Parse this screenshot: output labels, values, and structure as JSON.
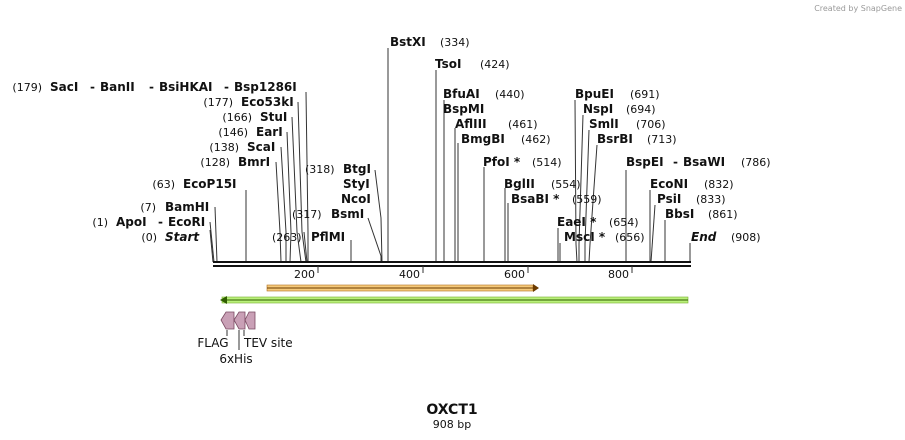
{
  "credit": "Created by SnapGene",
  "title": "OXCT1",
  "length_label": "908 bp",
  "sequence_length": 908,
  "ticks": [
    "200",
    "400",
    "600",
    "800"
  ],
  "enzymes": [
    {
      "name": "Start",
      "pos_text": "(0)",
      "site": 0,
      "italic": true
    },
    {
      "name": "ApoI",
      "pos_text": "(1)",
      "site": 1
    },
    {
      "name": "EcoRI",
      "site": 1
    },
    {
      "name": "BamHI",
      "pos_text": "(7)",
      "site": 7
    },
    {
      "name": "EcoP15I",
      "pos_text": "(63)",
      "site": 63
    },
    {
      "name": "BmrI",
      "pos_text": "(128)",
      "site": 128
    },
    {
      "name": "ScaI",
      "pos_text": "(138)",
      "site": 138
    },
    {
      "name": "EarI",
      "pos_text": "(146)",
      "site": 146
    },
    {
      "name": "StuI",
      "pos_text": "(166)",
      "site": 166
    },
    {
      "name": "Eco53kI",
      "pos_text": "(177)",
      "site": 177
    },
    {
      "name": "SacI",
      "pos_text": "(179)",
      "site": 179
    },
    {
      "name": "BanII",
      "site": 179
    },
    {
      "name": "BsiHKAI",
      "site": 179
    },
    {
      "name": "Bsp1286I",
      "site": 179
    },
    {
      "name": "PflMI",
      "pos_text": "(263)",
      "site": 263
    },
    {
      "name": "BsmI",
      "pos_text": "(317)",
      "site": 317
    },
    {
      "name": "BtgI",
      "pos_text": "(318)",
      "site": 318
    },
    {
      "name": "StyI",
      "site": 318
    },
    {
      "name": "NcoI",
      "site": 318
    },
    {
      "name": "BstXI",
      "pos_text": "(334)",
      "site": 334
    },
    {
      "name": "TsoI",
      "pos_text": "(424)",
      "site": 424
    },
    {
      "name": "BfuAI",
      "pos_text": "(440)",
      "site": 440
    },
    {
      "name": "BspMI",
      "site": 440
    },
    {
      "name": "AflIII",
      "pos_text": "(461)",
      "site": 461
    },
    {
      "name": "BmgBI",
      "pos_text": "(462)",
      "site": 462
    },
    {
      "name": "PfoI *",
      "pos_text": "(514)",
      "site": 514
    },
    {
      "name": "BglII",
      "pos_text": "(554)",
      "site": 554
    },
    {
      "name": "BsaBI *",
      "pos_text": "(559)",
      "site": 559
    },
    {
      "name": "EaeI *",
      "pos_text": "(654)",
      "site": 654
    },
    {
      "name": "MscI *",
      "pos_text": "(656)",
      "site": 656
    },
    {
      "name": "BpuEI",
      "pos_text": "(691)",
      "site": 691
    },
    {
      "name": "NspI",
      "pos_text": "(694)",
      "site": 694
    },
    {
      "name": "SmlI",
      "pos_text": "(706)",
      "site": 706
    },
    {
      "name": "BsrBI",
      "pos_text": "(713)",
      "site": 713
    },
    {
      "name": "BspEI",
      "site": 786
    },
    {
      "name": "BsaWI",
      "pos_text": "(786)",
      "site": 786
    },
    {
      "name": "EcoNI",
      "pos_text": "(832)",
      "site": 832
    },
    {
      "name": "PsiI",
      "pos_text": "(833)",
      "site": 833
    },
    {
      "name": "BbsI",
      "pos_text": "(861)",
      "site": 861
    },
    {
      "name": "End",
      "pos_text": "(908)",
      "site": 908,
      "italic": true
    }
  ],
  "features": [
    {
      "name": "FLAG",
      "color": "#c9a0b6"
    },
    {
      "name": "6xHis",
      "color": "#c9a0b6"
    },
    {
      "name": "TEV site",
      "color": "#c9a0b6"
    }
  ],
  "orf_colors": {
    "orange": "#f5c97a",
    "green": "#b9f07a"
  }
}
